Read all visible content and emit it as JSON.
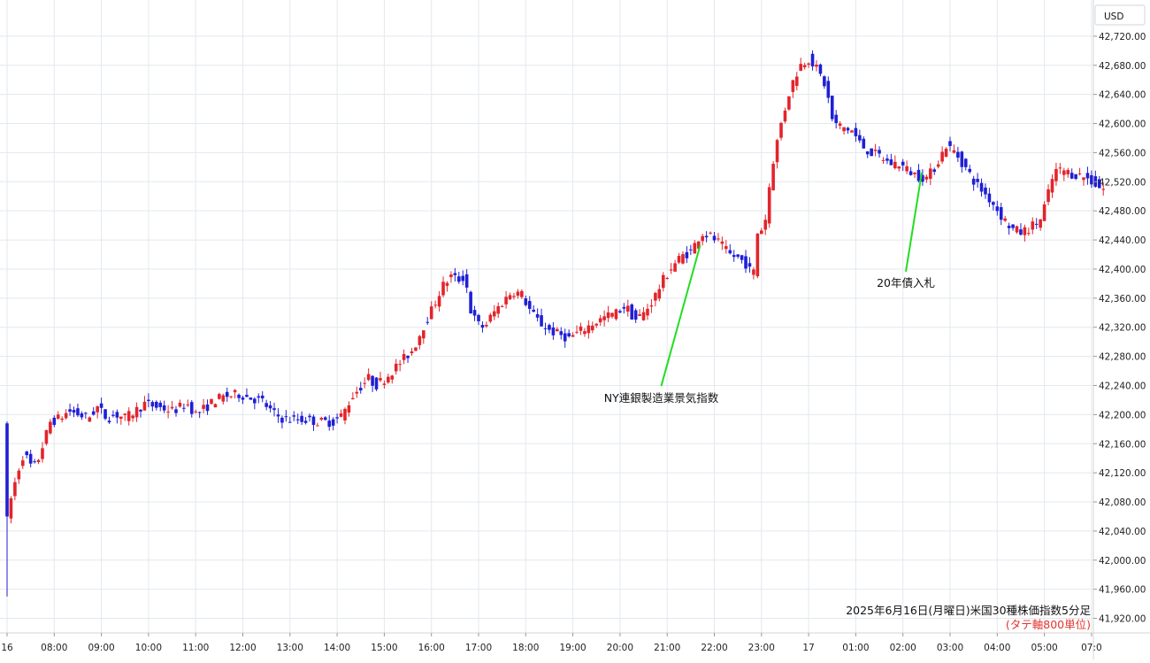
{
  "chart_data": {
    "type": "candlestick",
    "currency": "USD",
    "caption": "2025年6月16日(月曜日)米国30種株価指数5分足",
    "caption_sub": "(タテ軸800単位)",
    "ylim": [
      41900,
      42760
    ],
    "y_ticks": [
      41920,
      41960,
      42000,
      42040,
      42080,
      42120,
      42160,
      42200,
      42240,
      42280,
      42320,
      42360,
      42400,
      42440,
      42480,
      42520,
      42560,
      42600,
      42640,
      42680,
      42720
    ],
    "y_tick_labels": [
      "41,920.00",
      "41,960.00",
      "42,000.00",
      "42,040.00",
      "42,080.00",
      "42,120.00",
      "42,160.00",
      "42,200.00",
      "42,240.00",
      "42,280.00",
      "42,320.00",
      "42,360.00",
      "42,400.00",
      "42,440.00",
      "42,480.00",
      "42,520.00",
      "42,560.00",
      "42,600.00",
      "42,640.00",
      "42,680.00",
      "42,720.00"
    ],
    "x_ticks": [
      {
        "label": "16",
        "t": 0
      },
      {
        "label": "08:00",
        "t": 1
      },
      {
        "label": "09:00",
        "t": 2
      },
      {
        "label": "10:00",
        "t": 3
      },
      {
        "label": "11:00",
        "t": 4
      },
      {
        "label": "12:00",
        "t": 5
      },
      {
        "label": "13:00",
        "t": 6
      },
      {
        "label": "14:00",
        "t": 7
      },
      {
        "label": "15:00",
        "t": 8
      },
      {
        "label": "16:00",
        "t": 9
      },
      {
        "label": "17:00",
        "t": 10
      },
      {
        "label": "18:00",
        "t": 11
      },
      {
        "label": "19:00",
        "t": 12
      },
      {
        "label": "20:00",
        "t": 13
      },
      {
        "label": "21:00",
        "t": 14
      },
      {
        "label": "22:00",
        "t": 15
      },
      {
        "label": "23:00",
        "t": 16
      },
      {
        "label": "17",
        "t": 17
      },
      {
        "label": "01:00",
        "t": 18
      },
      {
        "label": "02:00",
        "t": 19
      },
      {
        "label": "03:00",
        "t": 20
      },
      {
        "label": "04:00",
        "t": 21
      },
      {
        "label": "05:00",
        "t": 22
      },
      {
        "label": "07:0",
        "t": 23
      }
    ],
    "colors": {
      "up": "#e3242b",
      "down": "#1f1fd6",
      "annotation_line": "#22dd22",
      "grid": "#e3e8ee"
    },
    "price_path": [
      [
        0.0,
        42195
      ],
      [
        0.03,
        41960
      ],
      [
        0.06,
        42045
      ],
      [
        0.15,
        42080
      ],
      [
        0.3,
        42120
      ],
      [
        0.45,
        42150
      ],
      [
        0.55,
        42130
      ],
      [
        0.7,
        42130
      ],
      [
        0.85,
        42160
      ],
      [
        1.0,
        42190
      ],
      [
        1.2,
        42195
      ],
      [
        1.4,
        42205
      ],
      [
        1.6,
        42200
      ],
      [
        1.8,
        42195
      ],
      [
        2.0,
        42210
      ],
      [
        2.2,
        42195
      ],
      [
        2.4,
        42200
      ],
      [
        2.6,
        42195
      ],
      [
        2.8,
        42205
      ],
      [
        3.0,
        42215
      ],
      [
        3.3,
        42210
      ],
      [
        3.6,
        42205
      ],
      [
        3.9,
        42215
      ],
      [
        4.1,
        42200
      ],
      [
        4.3,
        42210
      ],
      [
        4.5,
        42220
      ],
      [
        4.7,
        42225
      ],
      [
        5.0,
        42228
      ],
      [
        5.3,
        42222
      ],
      [
        5.5,
        42218
      ],
      [
        5.7,
        42203
      ],
      [
        5.9,
        42195
      ],
      [
        6.1,
        42193
      ],
      [
        6.4,
        42193
      ],
      [
        6.7,
        42190
      ],
      [
        7.0,
        42190
      ],
      [
        7.2,
        42200
      ],
      [
        7.4,
        42225
      ],
      [
        7.6,
        42240
      ],
      [
        7.75,
        42250
      ],
      [
        7.9,
        42240
      ],
      [
        8.1,
        42250
      ],
      [
        8.4,
        42270
      ],
      [
        8.7,
        42290
      ],
      [
        8.9,
        42320
      ],
      [
        9.1,
        42345
      ],
      [
        9.3,
        42375
      ],
      [
        9.5,
        42390
      ],
      [
        9.65,
        42385
      ],
      [
        9.8,
        42390
      ],
      [
        9.9,
        42345
      ],
      [
        10.05,
        42325
      ],
      [
        10.2,
        42320
      ],
      [
        10.4,
        42340
      ],
      [
        10.6,
        42355
      ],
      [
        10.8,
        42370
      ],
      [
        11.0,
        42365
      ],
      [
        11.2,
        42340
      ],
      [
        11.4,
        42325
      ],
      [
        11.6,
        42315
      ],
      [
        11.8,
        42310
      ],
      [
        12.0,
        42305
      ],
      [
        12.25,
        42315
      ],
      [
        12.5,
        42325
      ],
      [
        12.8,
        42335
      ],
      [
        13.0,
        42340
      ],
      [
        13.2,
        42350
      ],
      [
        13.4,
        42330
      ],
      [
        13.6,
        42340
      ],
      [
        13.8,
        42360
      ],
      [
        14.0,
        42385
      ],
      [
        14.2,
        42405
      ],
      [
        14.4,
        42418
      ],
      [
        14.6,
        42425
      ],
      [
        14.8,
        42450
      ],
      [
        15.0,
        42445
      ],
      [
        15.2,
        42435
      ],
      [
        15.4,
        42420
      ],
      [
        15.6,
        42415
      ],
      [
        15.8,
        42405
      ],
      [
        15.9,
        42385
      ],
      [
        16.0,
        42450
      ],
      [
        16.15,
        42460
      ],
      [
        16.3,
        42540
      ],
      [
        16.5,
        42600
      ],
      [
        16.7,
        42650
      ],
      [
        16.9,
        42680
      ],
      [
        17.1,
        42690
      ],
      [
        17.3,
        42670
      ],
      [
        17.45,
        42650
      ],
      [
        17.6,
        42600
      ],
      [
        17.8,
        42595
      ],
      [
        18.0,
        42590
      ],
      [
        18.2,
        42570
      ],
      [
        18.4,
        42560
      ],
      [
        18.6,
        42555
      ],
      [
        18.8,
        42545
      ],
      [
        19.0,
        42545
      ],
      [
        19.2,
        42535
      ],
      [
        19.4,
        42528
      ],
      [
        19.6,
        42525
      ],
      [
        19.8,
        42545
      ],
      [
        20.0,
        42570
      ],
      [
        20.2,
        42560
      ],
      [
        20.4,
        42540
      ],
      [
        20.6,
        42520
      ],
      [
        20.8,
        42505
      ],
      [
        21.0,
        42490
      ],
      [
        21.2,
        42470
      ],
      [
        21.4,
        42455
      ],
      [
        21.6,
        42450
      ],
      [
        21.8,
        42458
      ],
      [
        22.0,
        42468
      ],
      [
        22.15,
        42500
      ],
      [
        22.3,
        42535
      ],
      [
        22.5,
        42535
      ],
      [
        22.7,
        42530
      ],
      [
        22.9,
        42528
      ],
      [
        23.1,
        42520
      ],
      [
        23.3,
        42510
      ]
    ],
    "annotations": [
      {
        "text": "NY連銀製造業景気指数",
        "t": 14.7,
        "price": 42440
      },
      {
        "text": "20年債入札",
        "t": 19.4,
        "price": 42540
      }
    ]
  }
}
